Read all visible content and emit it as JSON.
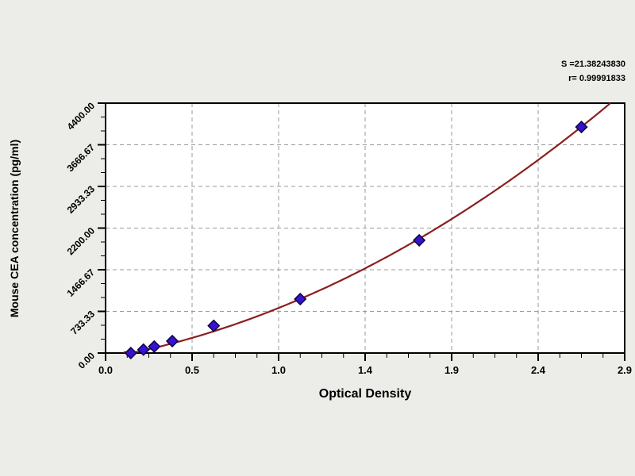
{
  "chart_data": {
    "type": "scatter",
    "title": "",
    "xlabel": "Optical Density",
    "ylabel": "Mouse CEA concentration (pg/ml)",
    "xlim": [
      0,
      2.88
    ],
    "ylim": [
      0,
      4400
    ],
    "x_ticks": {
      "values": [
        0,
        0.48,
        0.96,
        1.44,
        1.92,
        2.4,
        2.88
      ],
      "labels": [
        "0.0",
        "0.5",
        "1.0",
        "1.4",
        "1.9",
        "2.4",
        "2.9"
      ],
      "minor_step": 0.12
    },
    "y_ticks": {
      "values": [
        0,
        733.33,
        1466.67,
        2200,
        2933.33,
        3666.67,
        4400
      ],
      "labels": [
        "0.00",
        "733.33",
        "1466.67",
        "2200.00",
        "2933.33",
        "3666.67",
        "4400.00"
      ],
      "minor_step": 244.444
    },
    "grid": {
      "show": true,
      "style": "dashed",
      "on": "major-ticks"
    },
    "legend": {
      "show": false
    },
    "points": [
      {
        "od": 0.14,
        "conc": 0
      },
      {
        "od": 0.21,
        "conc": 60
      },
      {
        "od": 0.27,
        "conc": 115
      },
      {
        "od": 0.37,
        "conc": 210
      },
      {
        "od": 0.6,
        "conc": 480
      },
      {
        "od": 1.08,
        "conc": 950
      },
      {
        "od": 1.74,
        "conc": 1985
      },
      {
        "od": 2.64,
        "conc": 3980
      }
    ],
    "fit_curve": {
      "model": "quadratic",
      "a": 371.2,
      "b": 562.9,
      "c": -89.4,
      "od_start": 0.1,
      "od_end": 2.803
    },
    "stats": {
      "s_value": "S =21.38243830",
      "r_value": "r= 0.99991833"
    },
    "colors": {
      "background": "#ecede9",
      "plot_background": "#ffffff",
      "frame": "#000000",
      "grid": "#9a9a9a",
      "curve": "#8b1e1e",
      "marker_fill": "#3712cf",
      "marker_stroke": "#0d0440",
      "text": "#000000"
    }
  }
}
